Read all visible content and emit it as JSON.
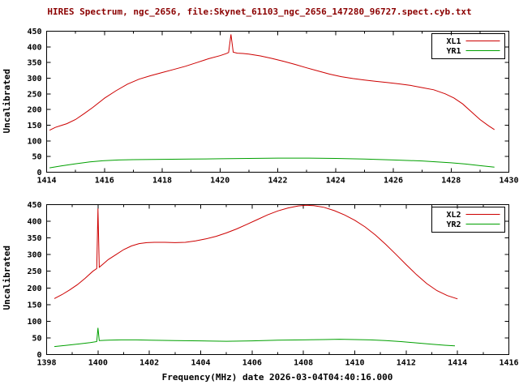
{
  "page": {
    "background": "#ffffff",
    "axis_color": "#000000"
  },
  "chart_data": [
    {
      "type": "line",
      "title": "HIRES Spectrum, ngc_2656, file:Skynet_61103_ngc_2656_147280_96727.spect.cyb.txt",
      "ylabel": "Uncalibrated",
      "xlim": [
        1414,
        1430
      ],
      "ylim": [
        0,
        450
      ],
      "xticks": [
        1414,
        1416,
        1418,
        1420,
        1422,
        1424,
        1426,
        1428,
        1430
      ],
      "xminor": [
        1415,
        1417,
        1419,
        1421,
        1423,
        1425,
        1427,
        1429
      ],
      "yticks": [
        0,
        50,
        100,
        150,
        200,
        250,
        300,
        350,
        400,
        450
      ],
      "grid": false,
      "legend_position": "top-right",
      "legend": [
        "XL1",
        "YR1"
      ],
      "series": [
        {
          "name": "XL1",
          "color": "#cd0000",
          "x": [
            1414.1,
            1414.3,
            1414.5,
            1414.7,
            1415.0,
            1415.3,
            1415.6,
            1416.0,
            1416.4,
            1416.8,
            1417.2,
            1417.6,
            1418.0,
            1418.4,
            1418.8,
            1419.2,
            1419.6,
            1420.0,
            1420.2,
            1420.3,
            1420.38,
            1420.46,
            1420.6,
            1420.8,
            1421.0,
            1421.4,
            1421.8,
            1422.2,
            1422.6,
            1423.0,
            1423.4,
            1423.8,
            1424.2,
            1424.6,
            1425.0,
            1425.4,
            1425.8,
            1426.2,
            1426.6,
            1427.0,
            1427.4,
            1427.8,
            1428.1,
            1428.4,
            1428.7,
            1429.0,
            1429.3,
            1429.5
          ],
          "y": [
            134,
            143,
            149,
            155,
            168,
            187,
            207,
            236,
            260,
            281,
            297,
            308,
            318,
            328,
            338,
            350,
            362,
            372,
            378,
            382,
            440,
            383,
            380,
            379,
            377,
            371,
            363,
            354,
            344,
            333,
            323,
            313,
            305,
            299,
            294,
            290,
            286,
            282,
            277,
            270,
            263,
            250,
            237,
            218,
            193,
            168,
            148,
            136
          ]
        },
        {
          "name": "YR1",
          "color": "#00a000",
          "x": [
            1414.1,
            1414.5,
            1415.0,
            1415.5,
            1416.0,
            1416.5,
            1417.0,
            1418.0,
            1419.0,
            1420.0,
            1421.0,
            1422.0,
            1423.0,
            1424.0,
            1425.0,
            1426.0,
            1427.0,
            1427.5,
            1428.0,
            1428.5,
            1429.0,
            1429.5
          ],
          "y": [
            14,
            20,
            27,
            33,
            37,
            39,
            40,
            41,
            42,
            43,
            44,
            45,
            45,
            44,
            42,
            39,
            36,
            33,
            30,
            26,
            21,
            16
          ]
        }
      ]
    },
    {
      "type": "line",
      "title": "",
      "xlabel": "Frequency(MHz) date 2026-03-04T04:40:16.000",
      "ylabel": "Uncalibrated",
      "xlim": [
        1398,
        1416
      ],
      "ylim": [
        0,
        450
      ],
      "xticks": [
        1398,
        1400,
        1402,
        1404,
        1406,
        1408,
        1410,
        1412,
        1414,
        1416
      ],
      "xminor": [
        1399,
        1401,
        1403,
        1405,
        1407,
        1409,
        1411,
        1413,
        1415
      ],
      "yticks": [
        0,
        50,
        100,
        150,
        200,
        250,
        300,
        350,
        400,
        450
      ],
      "grid": false,
      "legend_position": "top-right",
      "legend": [
        "XL2",
        "YR2"
      ],
      "series": [
        {
          "name": "XL2",
          "color": "#cd0000",
          "x": [
            1398.3,
            1398.6,
            1398.9,
            1399.2,
            1399.5,
            1399.8,
            1399.95,
            1400.0,
            1400.05,
            1400.2,
            1400.4,
            1400.7,
            1401.0,
            1401.3,
            1401.6,
            1401.9,
            1402.2,
            1402.6,
            1403.0,
            1403.4,
            1403.8,
            1404.2,
            1404.6,
            1405.0,
            1405.4,
            1405.8,
            1406.2,
            1406.6,
            1407.0,
            1407.4,
            1407.8,
            1408.1,
            1408.4,
            1408.8,
            1409.2,
            1409.6,
            1410.0,
            1410.4,
            1410.8,
            1411.2,
            1411.6,
            1412.0,
            1412.4,
            1412.8,
            1413.2,
            1413.6,
            1414.0
          ],
          "y": [
            168,
            180,
            194,
            210,
            229,
            250,
            258,
            438,
            262,
            272,
            285,
            300,
            315,
            326,
            333,
            336,
            337,
            337,
            336,
            337,
            341,
            347,
            355,
            365,
            377,
            391,
            405,
            419,
            431,
            440,
            446,
            448,
            447,
            442,
            432,
            419,
            403,
            383,
            359,
            331,
            301,
            270,
            240,
            213,
            192,
            177,
            167
          ]
        },
        {
          "name": "YR2",
          "color": "#00a000",
          "x": [
            1398.3,
            1398.8,
            1399.3,
            1399.7,
            1399.95,
            1400.0,
            1400.05,
            1400.4,
            1400.9,
            1401.5,
            1402.0,
            1403.0,
            1404.0,
            1405.0,
            1406.0,
            1407.0,
            1408.0,
            1408.8,
            1409.4,
            1410.0,
            1410.6,
            1411.2,
            1411.8,
            1412.4,
            1413.0,
            1413.5,
            1413.9
          ],
          "y": [
            24,
            28,
            32,
            36,
            39,
            80,
            42,
            43,
            44,
            44,
            43,
            42,
            41,
            40,
            41,
            43,
            44,
            45,
            46,
            45,
            44,
            42,
            39,
            35,
            31,
            28,
            26
          ]
        }
      ]
    }
  ]
}
